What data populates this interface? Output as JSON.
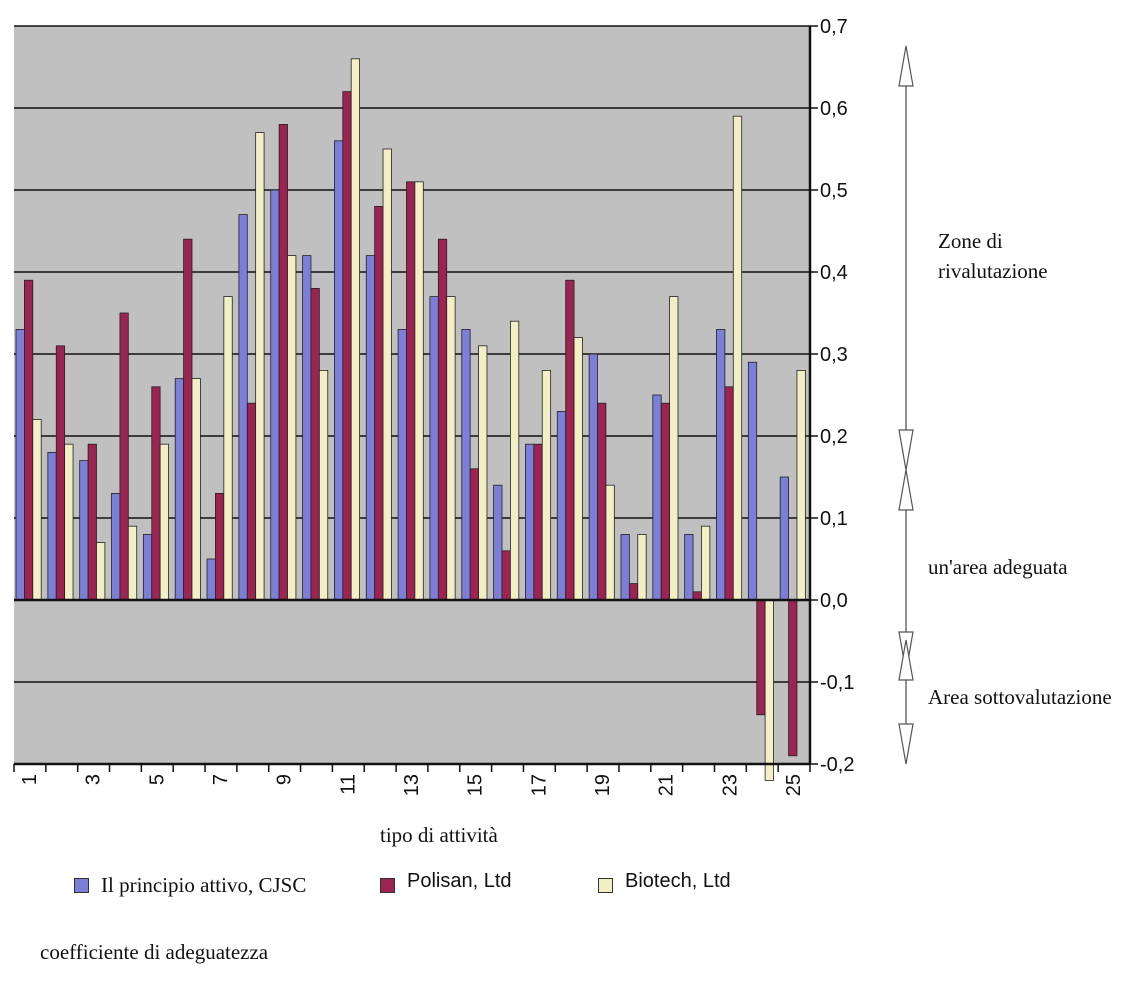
{
  "chart_data": {
    "type": "bar",
    "categories": [
      "1",
      "2",
      "3",
      "4",
      "5",
      "6",
      "7",
      "8",
      "9",
      "10",
      "11",
      "12",
      "13",
      "14",
      "15",
      "16",
      "17",
      "18",
      "19",
      "20",
      "21",
      "22",
      "23",
      "24",
      "25"
    ],
    "x_tick_labels": [
      "1",
      "3",
      "5",
      "7",
      "9",
      "11",
      "13",
      "15",
      "17",
      "19",
      "21",
      "23",
      "25"
    ],
    "y_tick_labels": [
      "0,7",
      "0,6",
      "0,5",
      "0,4",
      "0,3",
      "0,2",
      "0,1",
      "0,0",
      "-0,1",
      "-0,2"
    ],
    "ylim": [
      -0.2,
      0.7
    ],
    "xlabel": "tipo di attività",
    "ylabel": "coefficiente di adeguatezza",
    "grid": true,
    "series": [
      {
        "name": "Il principio attivo, CJSC",
        "color": "#7B7FD8",
        "values": [
          0.33,
          0.18,
          0.17,
          0.13,
          0.08,
          0.27,
          0.05,
          0.47,
          0.5,
          0.42,
          0.56,
          0.42,
          0.33,
          0.37,
          0.33,
          0.14,
          0.19,
          0.23,
          0.3,
          0.08,
          0.25,
          0.08,
          0.33,
          0.29,
          0.15
        ]
      },
      {
        "name": "Polisan, Ltd",
        "color": "#9B2452",
        "values": [
          0.39,
          0.31,
          0.19,
          0.35,
          0.26,
          0.44,
          0.13,
          0.24,
          0.58,
          0.38,
          0.62,
          0.48,
          0.51,
          0.44,
          0.16,
          0.06,
          0.19,
          0.39,
          0.24,
          0.02,
          0.24,
          0.01,
          0.26,
          -0.14,
          -0.19
        ]
      },
      {
        "name": "Biotech, Ltd",
        "color": "#F2EFC4",
        "values": [
          0.22,
          0.19,
          0.07,
          0.09,
          0.19,
          0.27,
          0.37,
          0.57,
          0.42,
          0.28,
          0.66,
          0.55,
          0.51,
          0.37,
          0.31,
          0.34,
          0.28,
          0.32,
          0.14,
          0.08,
          0.37,
          0.09,
          0.59,
          -0.22,
          0.28
        ]
      }
    ]
  },
  "zones": {
    "revaluation": "Zone di rivalutazione",
    "adequate": "un'area adeguata",
    "undervaluation": "Area sottovalutazione"
  },
  "legend": {
    "item0": "Il principio attivo, CJSC",
    "item1": "Polisan, Ltd",
    "item2": "Biotech, Ltd"
  }
}
